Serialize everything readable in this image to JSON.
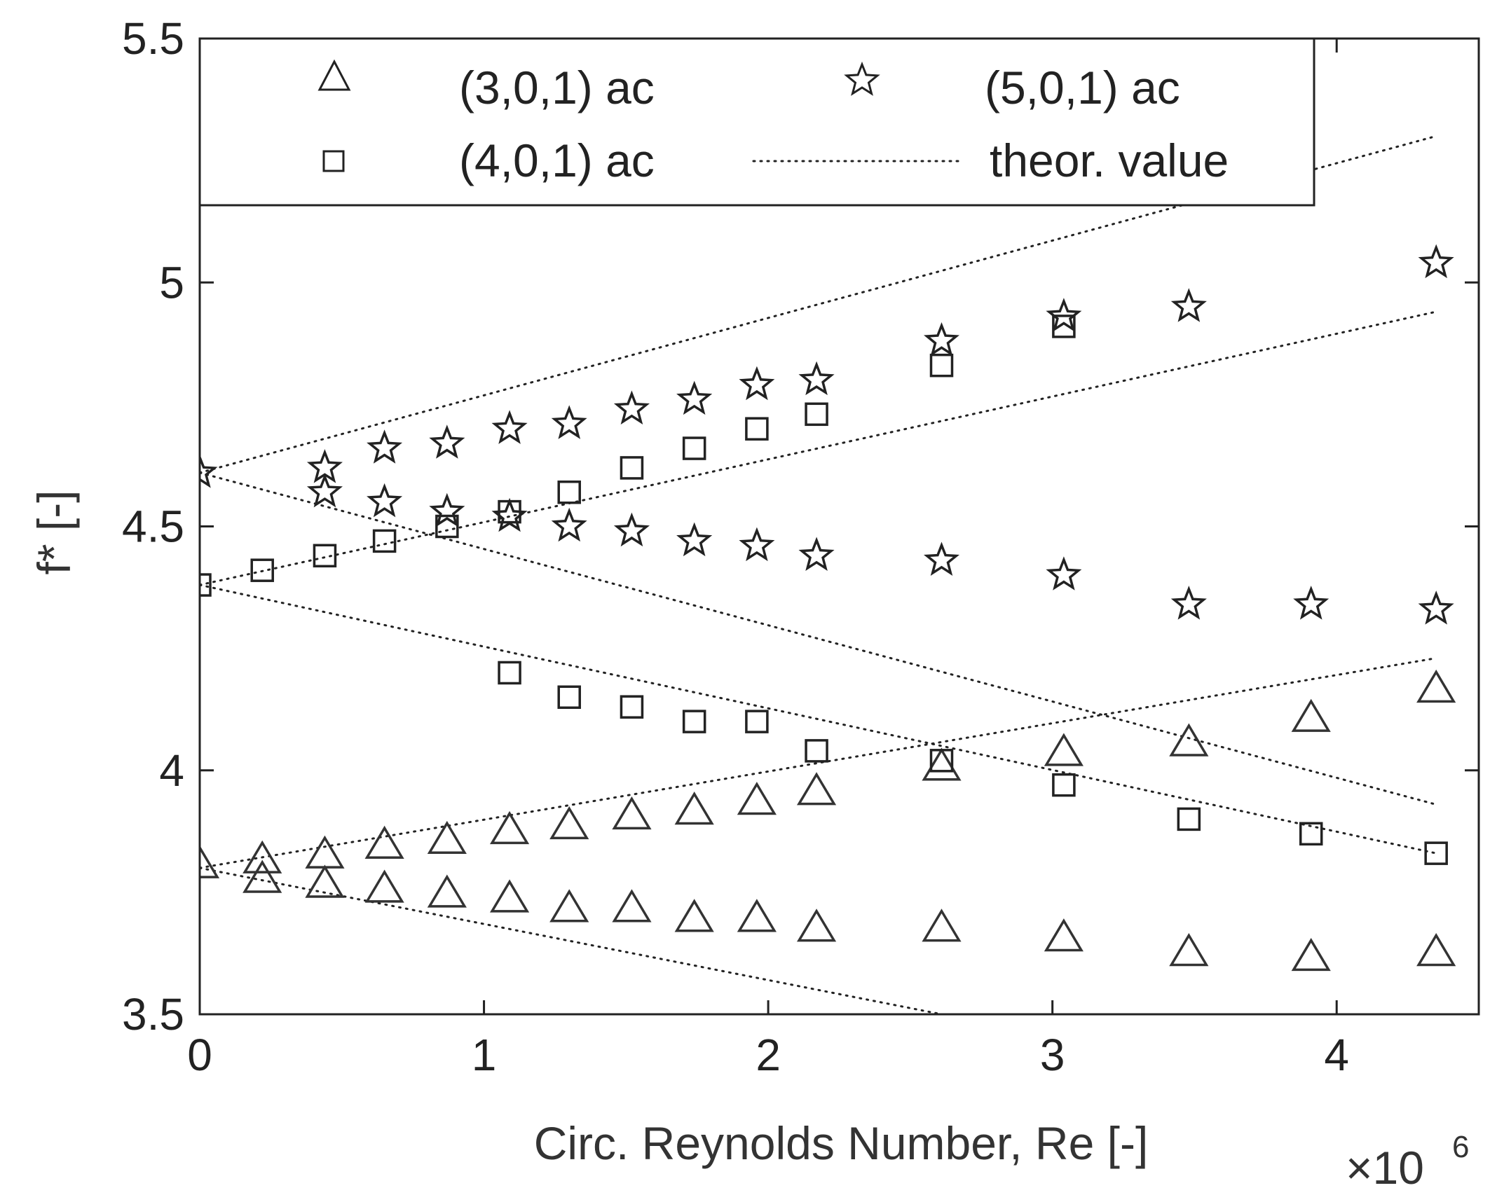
{
  "chart_data": {
    "type": "scatter",
    "xlabel": "Circ. Reynolds Number, Re [-]",
    "ylabel": "f* [-]",
    "x_multiplier_label": "×10",
    "x_multiplier_exp": "6",
    "xlim": [
      0,
      4.5
    ],
    "ylim": [
      3.5,
      5.5
    ],
    "xticks": [
      0,
      1,
      2,
      3,
      4
    ],
    "yticks": [
      3.5,
      4,
      4.5,
      5,
      5.5
    ],
    "xtick_labels": [
      "0",
      "1",
      "2",
      "3",
      "4"
    ],
    "ytick_labels": [
      "3.5",
      "4",
      "4.5",
      "5",
      "5.5"
    ],
    "grid": false,
    "legend_position": "top",
    "series": [
      {
        "name": "(3,0,1) ac",
        "marker": "triangle",
        "points": [
          [
            0,
            3.81
          ],
          [
            0.22,
            3.82
          ],
          [
            0.22,
            3.78
          ],
          [
            0.44,
            3.83
          ],
          [
            0.44,
            3.77
          ],
          [
            0.65,
            3.85
          ],
          [
            0.65,
            3.76
          ],
          [
            0.87,
            3.86
          ],
          [
            0.87,
            3.75
          ],
          [
            1.09,
            3.88
          ],
          [
            1.09,
            3.74
          ],
          [
            1.3,
            3.89
          ],
          [
            1.3,
            3.72
          ],
          [
            1.52,
            3.91
          ],
          [
            1.52,
            3.72
          ],
          [
            1.74,
            3.92
          ],
          [
            1.74,
            3.7
          ],
          [
            1.96,
            3.94
          ],
          [
            1.96,
            3.7
          ],
          [
            2.17,
            3.96
          ],
          [
            2.17,
            3.68
          ],
          [
            2.61,
            4.01
          ],
          [
            2.61,
            3.68
          ],
          [
            3.04,
            4.04
          ],
          [
            3.04,
            3.66
          ],
          [
            3.48,
            4.06
          ],
          [
            3.48,
            3.63
          ],
          [
            3.91,
            4.11
          ],
          [
            3.91,
            3.62
          ],
          [
            4.35,
            4.17
          ],
          [
            4.35,
            3.63
          ]
        ]
      },
      {
        "name": "(4,0,1) ac",
        "marker": "square",
        "points": [
          [
            0,
            4.38
          ],
          [
            0.22,
            4.41
          ],
          [
            0.44,
            4.44
          ],
          [
            0.65,
            4.47
          ],
          [
            0.87,
            4.5
          ],
          [
            1.09,
            4.53
          ],
          [
            1.09,
            4.2
          ],
          [
            1.3,
            4.57
          ],
          [
            1.3,
            4.15
          ],
          [
            1.52,
            4.62
          ],
          [
            1.52,
            4.13
          ],
          [
            1.74,
            4.66
          ],
          [
            1.74,
            4.1
          ],
          [
            1.96,
            4.7
          ],
          [
            1.96,
            4.1
          ],
          [
            2.17,
            4.73
          ],
          [
            2.17,
            4.04
          ],
          [
            2.61,
            4.83
          ],
          [
            2.61,
            4.02
          ],
          [
            3.04,
            4.91
          ],
          [
            3.04,
            3.97
          ],
          [
            3.48,
            3.9
          ],
          [
            3.91,
            3.87
          ],
          [
            4.35,
            3.83
          ]
        ]
      },
      {
        "name": "(5,0,1) ac",
        "marker": "star",
        "points": [
          [
            0,
            4.61
          ],
          [
            0.44,
            4.62
          ],
          [
            0.44,
            4.57
          ],
          [
            0.65,
            4.66
          ],
          [
            0.65,
            4.55
          ],
          [
            0.87,
            4.67
          ],
          [
            0.87,
            4.53
          ],
          [
            1.09,
            4.7
          ],
          [
            1.09,
            4.52
          ],
          [
            1.3,
            4.71
          ],
          [
            1.3,
            4.5
          ],
          [
            1.52,
            4.74
          ],
          [
            1.52,
            4.49
          ],
          [
            1.74,
            4.76
          ],
          [
            1.74,
            4.47
          ],
          [
            1.96,
            4.79
          ],
          [
            1.96,
            4.46
          ],
          [
            2.17,
            4.8
          ],
          [
            2.17,
            4.44
          ],
          [
            2.61,
            4.88
          ],
          [
            2.61,
            4.43
          ],
          [
            3.04,
            4.93
          ],
          [
            3.04,
            4.4
          ],
          [
            3.48,
            4.95
          ],
          [
            3.48,
            4.34
          ],
          [
            3.91,
            4.34
          ],
          [
            4.35,
            5.04
          ],
          [
            4.35,
            4.33
          ]
        ]
      },
      {
        "name": "theor. value",
        "style": "dotted",
        "lines": [
          [
            [
              0,
              4.61
            ],
            [
              4.35,
              5.3
            ]
          ],
          [
            [
              0,
              4.61
            ],
            [
              4.35,
              3.93
            ]
          ],
          [
            [
              0,
              4.38
            ],
            [
              4.35,
              4.94
            ]
          ],
          [
            [
              0,
              4.38
            ],
            [
              4.35,
              3.83
            ]
          ],
          [
            [
              0,
              3.8
            ],
            [
              4.35,
              4.23
            ]
          ],
          [
            [
              0,
              3.8
            ],
            [
              4.35,
              3.3
            ]
          ]
        ]
      }
    ],
    "legend": {
      "entries": [
        "(3,0,1) ac",
        "(5,0,1) ac",
        "(4,0,1) ac",
        "theor. value"
      ]
    }
  }
}
